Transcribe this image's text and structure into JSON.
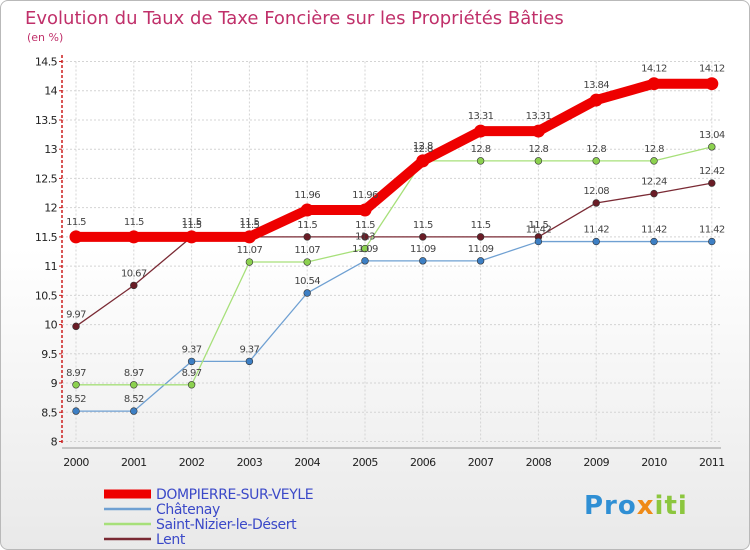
{
  "chart_data": {
    "type": "line",
    "title": "Evolution du Taux de Taxe Foncière sur les Propriétés Bâties",
    "subtitle": "(en %)",
    "categories": [
      "2000",
      "2001",
      "2002",
      "2003",
      "2004",
      "2005",
      "2006",
      "2007",
      "2008",
      "2009",
      "2010",
      "2011"
    ],
    "ylim": [
      8,
      14.5
    ],
    "yticks": [
      "8",
      "8.5",
      "9",
      "9.5",
      "10",
      "10.5",
      "11",
      "11.5",
      "12",
      "12.5",
      "13",
      "13.5",
      "14",
      "14.5"
    ],
    "grid": true,
    "series": [
      {
        "name": "DOMPIERRE-SUR-VEYLE",
        "color": "#ee0000",
        "marker_color": "#ee0000",
        "width": "thick",
        "values": [
          11.5,
          11.5,
          11.5,
          11.5,
          11.96,
          11.96,
          12.8,
          13.31,
          13.31,
          13.84,
          14.12,
          14.12
        ],
        "labels": [
          "11.5",
          "11.5",
          "11.5",
          "11.5",
          "11.96",
          "11.96",
          "12.8",
          "13.31",
          "13.31",
          "13.84",
          "14.12",
          "14.12"
        ]
      },
      {
        "name": "Châtenay",
        "color": "#6fa0d2",
        "marker_color": "#3d7fc4",
        "width": "thin",
        "values": [
          8.52,
          8.52,
          9.37,
          9.37,
          10.54,
          11.09,
          11.09,
          11.09,
          11.42,
          11.42,
          11.42,
          11.42
        ],
        "labels": [
          "8.52",
          "8.52",
          "9.37",
          "9.37",
          "10.54",
          "11.09",
          "11.09",
          "11.09",
          "11.42",
          "11.42",
          "11.42",
          "11.42"
        ]
      },
      {
        "name": "Saint-Nizier-le-Désert",
        "color": "#a7e07a",
        "marker_color": "#8cd14f",
        "width": "thin",
        "values": [
          8.97,
          8.97,
          8.97,
          11.07,
          11.07,
          11.3,
          12.8,
          12.8,
          12.8,
          12.8,
          12.8,
          13.04
        ],
        "labels": [
          "8.97",
          "8.97",
          "8.97",
          "11.07",
          "11.07",
          "11.3",
          "12.8",
          "12.8",
          "12.8",
          "12.8",
          "12.8",
          "13.04"
        ]
      },
      {
        "name": "Lent",
        "color": "#7a2a34",
        "marker_color": "#6a1c26",
        "width": "thin",
        "values": [
          9.97,
          10.67,
          11.5,
          11.5,
          11.5,
          11.5,
          11.5,
          11.5,
          11.5,
          12.08,
          12.24,
          12.42
        ],
        "labels": [
          "9.97",
          "10.67",
          "11.5",
          "11.5",
          "11.5",
          "11.5",
          "11.5",
          "11.5",
          "11.5",
          "12.08",
          "12.24",
          "12.42"
        ]
      }
    ],
    "legend_position": "bottom-left"
  },
  "logo": {
    "p1": "Pro",
    "p2": "x",
    "p3": "iti"
  }
}
